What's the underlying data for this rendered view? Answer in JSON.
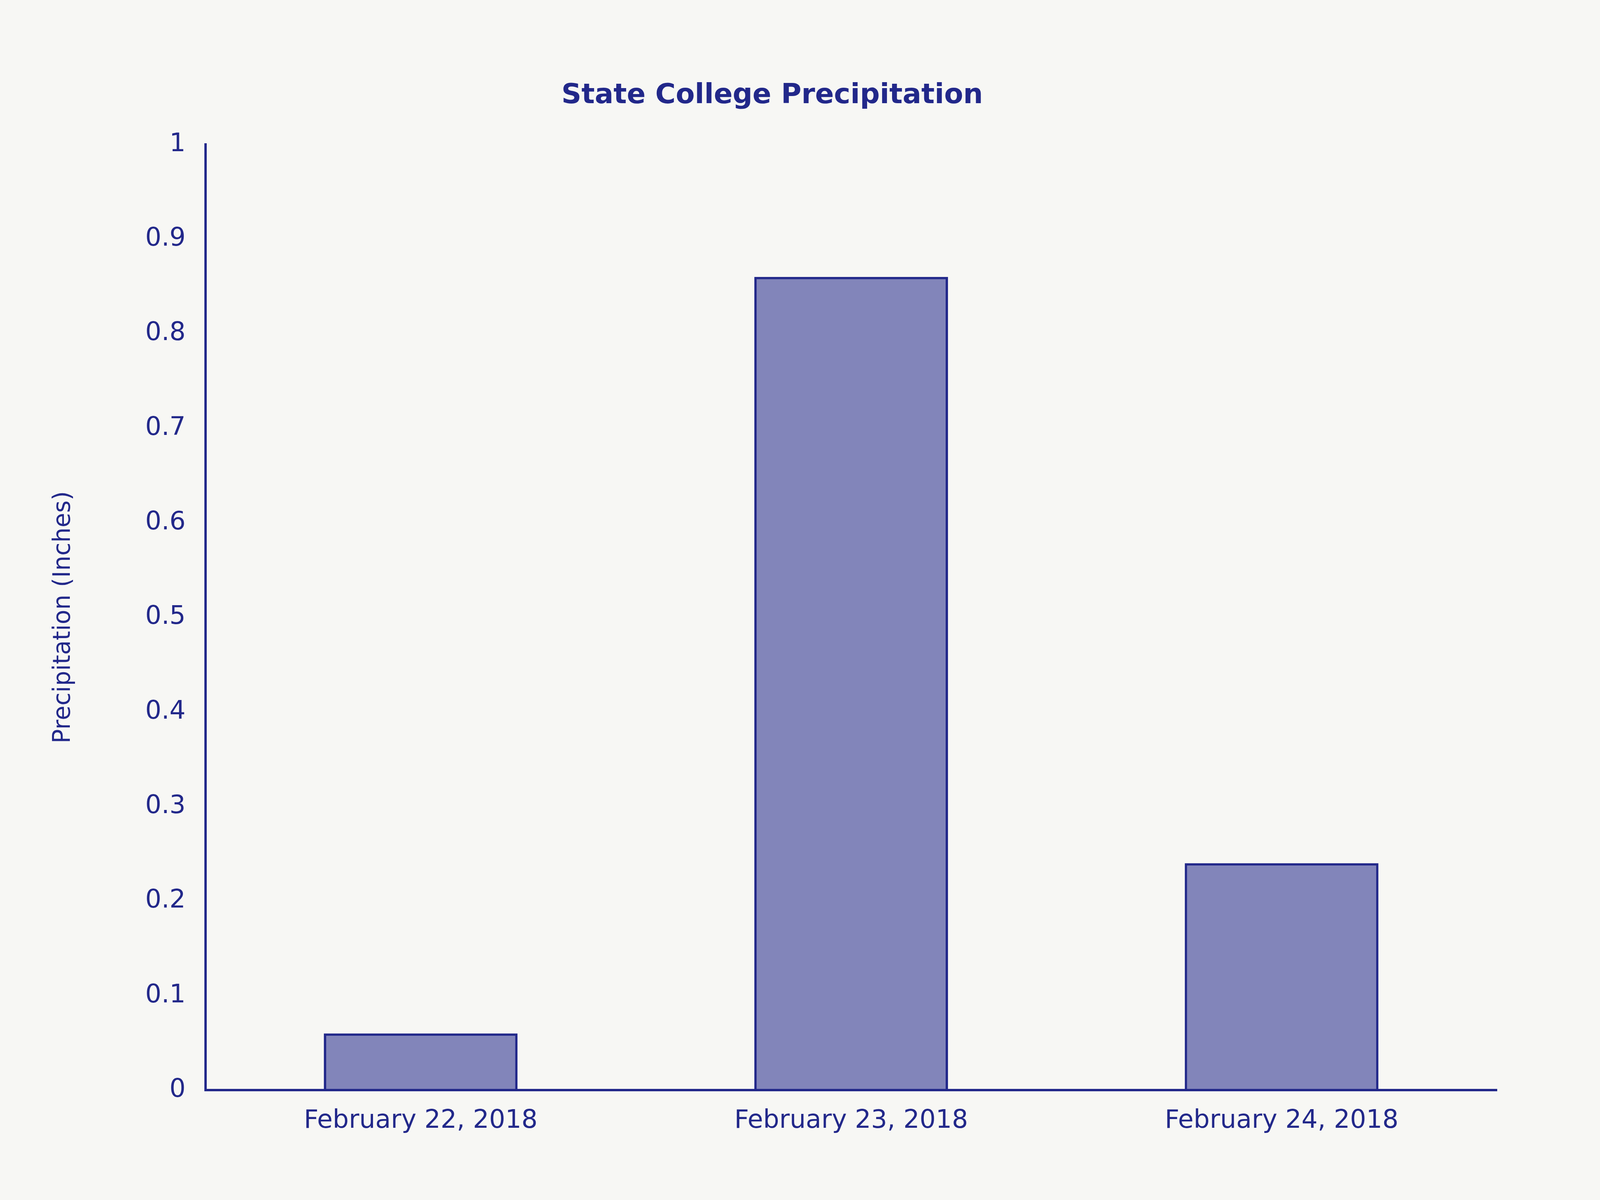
{
  "chart_data": {
    "type": "bar",
    "title": "State College Precipitation",
    "y_label": "Precipitation (Inches)",
    "categories": [
      "February 22, 2018",
      "February 23, 2018",
      "February 24, 2018"
    ],
    "values": [
      0.06,
      0.86,
      0.24
    ],
    "color": "#22288a",
    "ylim": [
      0,
      1
    ],
    "yticks": [
      0,
      0.1,
      0.2,
      0.3,
      0.4,
      0.5,
      0.6,
      0.7,
      0.8,
      0.9,
      1
    ],
    "grid": false
  }
}
